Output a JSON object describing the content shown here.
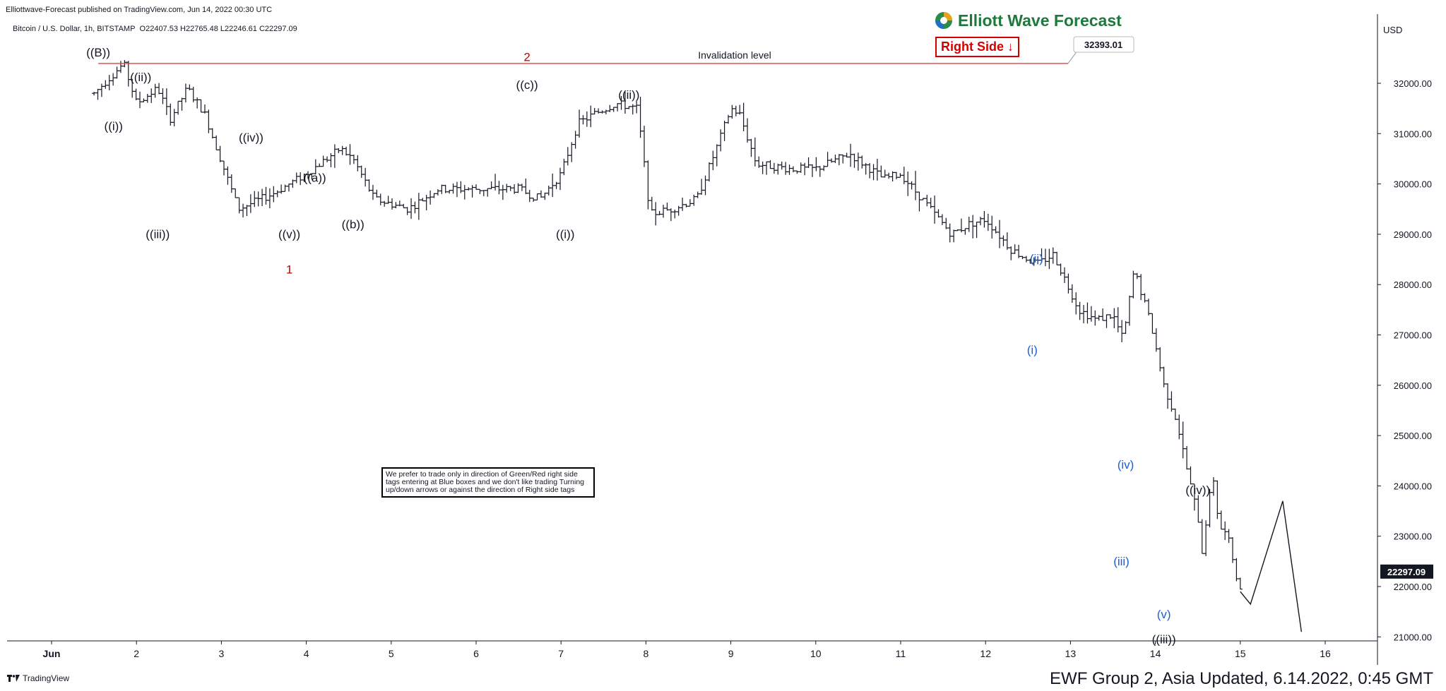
{
  "header": {
    "published": "Elliottwave-Forecast published on TradingView.com, Jun 14, 2022 00:30 UTC",
    "symbol": "Bitcoin / U.S. Dollar, 1h, BITSTAMP",
    "ohlc": "O22407.53  H22765.48  L22246.61  C22297.09"
  },
  "brand": {
    "name": "Elliott Wave Forecast",
    "logo_icon": "globe-logo-icon"
  },
  "right_side_tag": {
    "label": "Right Side",
    "arrow": "↓",
    "color": "#d40000"
  },
  "note_text": "We prefer to trade only in direction of Green/Red right side tags entering at Blue boxes and we don't like trading Turning up/down arrows or against the direction of Right side tags",
  "footer": {
    "tradingview": "TradingView",
    "caption": "EWF Group 2, Asia Updated, 6.14.2022, 0:45 GMT"
  },
  "chart_data": {
    "type": "line",
    "title": "Bitcoin / U.S. Dollar, 1h, BITSTAMP",
    "ylabel": "USD",
    "xlabel": "",
    "ylim": [
      21000,
      33000
    ],
    "grid": false,
    "x_ticks": [
      "Jun",
      "2",
      "3",
      "4",
      "5",
      "6",
      "7",
      "8",
      "9",
      "10",
      "11",
      "12",
      "13",
      "14",
      "15",
      "16"
    ],
    "y_ticks": [
      "21000.00",
      "22000.00",
      "23000.00",
      "24000.00",
      "25000.00",
      "26000.00",
      "27000.00",
      "28000.00",
      "29000.00",
      "30000.00",
      "31000.00",
      "32000.00"
    ],
    "last_price": "22297.09",
    "invalidation": {
      "label": "Invalidation level",
      "value": "32393.01",
      "color": "#e04040"
    },
    "series": [
      {
        "x": [
          0.5,
          0.85,
          1.0,
          1.25,
          1.4,
          1.6,
          1.8,
          2.2,
          2.6,
          3.0,
          3.4,
          3.55,
          3.8,
          4.2,
          4.55,
          5.0,
          5.5,
          5.75,
          6.0,
          6.2,
          6.4,
          6.65,
          6.9,
          7.05,
          7.3,
          7.6,
          7.85,
          8.0,
          8.1,
          8.3,
          8.7,
          9.0,
          9.4,
          9.8,
          10.0,
          10.3,
          10.6,
          10.8,
          11.0,
          11.3,
          11.6,
          11.8,
          12.1,
          12.3,
          12.5,
          12.62,
          12.75,
          12.95,
          13.1,
          13.25,
          13.4,
          13.5,
          13.55,
          13.62,
          13.68,
          13.75,
          13.85,
          14.0
        ],
        "y": [
          31800,
          32393,
          31600,
          31900,
          31300,
          31900,
          31400,
          29500,
          29800,
          30200,
          30700,
          30500,
          29700,
          29500,
          29900,
          29900,
          29900,
          29700,
          30200,
          31200,
          31400,
          31600,
          31500,
          29400,
          29500,
          29700,
          30800,
          31500,
          31400,
          30400,
          30300,
          30300,
          30600,
          30100,
          30200,
          29600,
          29000,
          29200,
          29300,
          28700,
          28400,
          28600,
          27500,
          27300,
          27400,
          26900,
          28300,
          27200,
          26000,
          25300,
          24100,
          23400,
          22700,
          23600,
          24200,
          23200,
          23000,
          21900
        ]
      },
      {
        "x": [
          14.0,
          14.12,
          14.5,
          14.72
        ],
        "y": [
          21900,
          21650,
          23700,
          21100
        ]
      }
    ],
    "wave_labels": [
      {
        "text": "((B))",
        "x": 0.55,
        "y": 32393,
        "pos": "above",
        "color": "#131722"
      },
      {
        "text": "((i))",
        "x": 0.73,
        "y": 31350,
        "pos": "below",
        "color": "#131722"
      },
      {
        "text": "((ii))",
        "x": 1.05,
        "y": 31900,
        "pos": "above",
        "color": "#131722"
      },
      {
        "text": "((iii))",
        "x": 1.25,
        "y": 29200,
        "pos": "below",
        "color": "#131722"
      },
      {
        "text": "((iv))",
        "x": 2.35,
        "y": 30700,
        "pos": "above",
        "color": "#131722"
      },
      {
        "text": "((v))",
        "x": 2.8,
        "y": 29200,
        "pos": "below",
        "color": "#131722"
      },
      {
        "text": "1",
        "x": 2.8,
        "y": 28500,
        "pos": "below",
        "color": "#c00000"
      },
      {
        "text": "((a))",
        "x": 3.1,
        "y": 29900,
        "pos": "above",
        "color": "#131722"
      },
      {
        "text": "((b))",
        "x": 3.55,
        "y": 29400,
        "pos": "below",
        "color": "#131722"
      },
      {
        "text": "2",
        "x": 5.6,
        "y": 32300,
        "pos": "above",
        "color": "#c00000"
      },
      {
        "text": "((c))",
        "x": 5.6,
        "y": 31750,
        "pos": "above",
        "color": "#131722"
      },
      {
        "text": "((i))",
        "x": 6.05,
        "y": 29200,
        "pos": "below",
        "color": "#131722"
      },
      {
        "text": "((ii))",
        "x": 6.8,
        "y": 31550,
        "pos": "above",
        "color": "#131722"
      },
      {
        "text": "(i)",
        "x": 11.55,
        "y": 26900,
        "pos": "below",
        "color": "#1a5fd6"
      },
      {
        "text": "(ii)",
        "x": 11.6,
        "y": 28300,
        "pos": "above",
        "color": "#1a5fd6"
      },
      {
        "text": "(iii)",
        "x": 12.6,
        "y": 22700,
        "pos": "below",
        "color": "#1a5fd6"
      },
      {
        "text": "(iv)",
        "x": 12.65,
        "y": 24200,
        "pos": "above",
        "color": "#1a5fd6"
      },
      {
        "text": "(v)",
        "x": 13.1,
        "y": 21650,
        "pos": "below",
        "color": "#1a5fd6"
      },
      {
        "text": "((iii))",
        "x": 13.1,
        "y": 21150,
        "pos": "below",
        "color": "#131722"
      },
      {
        "text": "((iv))",
        "x": 13.5,
        "y": 23700,
        "pos": "above",
        "color": "#131722"
      }
    ]
  }
}
